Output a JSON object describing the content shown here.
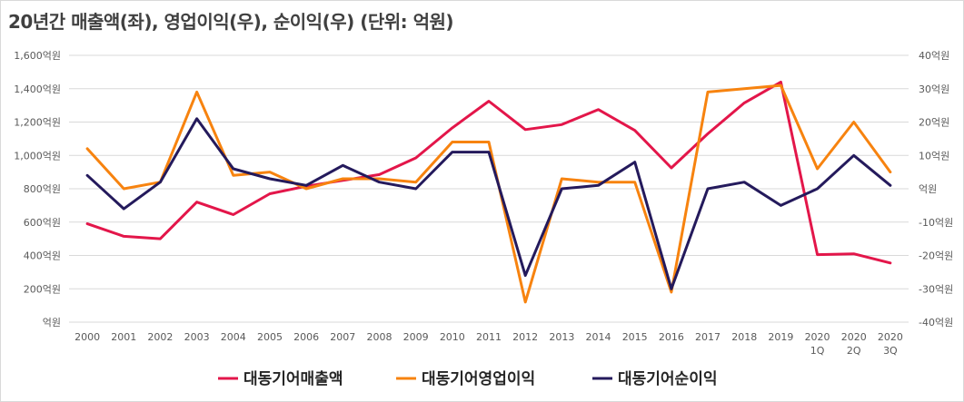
{
  "title": "20년간 매출액(좌), 영업이익(우), 순이익(우) (단위: 억원)",
  "chart_data": {
    "type": "line",
    "title": "20년간 매출액(좌), 영업이익(우), 순이익(우) (단위: 억원)",
    "categories": [
      [
        "2000"
      ],
      [
        "2001"
      ],
      [
        "2002"
      ],
      [
        "2003"
      ],
      [
        "2004"
      ],
      [
        "2005"
      ],
      [
        "2006"
      ],
      [
        "2007"
      ],
      [
        "2008"
      ],
      [
        "2009"
      ],
      [
        "2010"
      ],
      [
        "2011"
      ],
      [
        "2012"
      ],
      [
        "2013"
      ],
      [
        "2014"
      ],
      [
        "2015"
      ],
      [
        "2016"
      ],
      [
        "2017"
      ],
      [
        "2018"
      ],
      [
        "2019"
      ],
      [
        "2020",
        "1Q"
      ],
      [
        "2020",
        "2Q"
      ],
      [
        "2020",
        "3Q"
      ]
    ],
    "left_axis": {
      "ylim": [
        0,
        1600
      ],
      "ticks": [
        0,
        200,
        400,
        600,
        800,
        1000,
        1200,
        1400,
        1600
      ],
      "tick_labels": [
        "억원",
        "200억원",
        "400억원",
        "600억원",
        "800억원",
        "1,000억원",
        "1,200억원",
        "1,400억원",
        "1,600억원"
      ]
    },
    "right_axis": {
      "ylim": [
        -40,
        40
      ],
      "ticks": [
        -40,
        -30,
        -20,
        -10,
        0,
        10,
        20,
        30,
        40
      ],
      "tick_labels": [
        "-40억원",
        "-30억원",
        "-20억원",
        "-10억원",
        "억원",
        "10억원",
        "20억원",
        "30억원",
        "40억원"
      ]
    },
    "grid": true,
    "legend_position": "bottom",
    "series": [
      {
        "name": "대동기어매출액",
        "axis": "left",
        "color": "#e3164a",
        "values": [
          590,
          515,
          500,
          720,
          645,
          770,
          815,
          850,
          885,
          985,
          1165,
          1325,
          1155,
          1185,
          1275,
          1150,
          925,
          1130,
          1315,
          1440,
          405,
          410,
          355
        ]
      },
      {
        "name": "대동기어영업이익",
        "axis": "right",
        "color": "#f7830f",
        "values": [
          12,
          0,
          2,
          29,
          4,
          5,
          0,
          3,
          3,
          2,
          14,
          14,
          -34,
          3,
          2,
          2,
          -31,
          29,
          30,
          31,
          6,
          20,
          5
        ]
      },
      {
        "name": "대동기어순이익",
        "axis": "right",
        "color": "#241a5c",
        "values": [
          4,
          -6,
          2,
          21,
          6,
          3,
          1,
          7,
          2,
          0,
          11,
          11,
          -26,
          0,
          1,
          8,
          -30,
          0,
          2,
          -5,
          0,
          10,
          1
        ]
      }
    ]
  }
}
